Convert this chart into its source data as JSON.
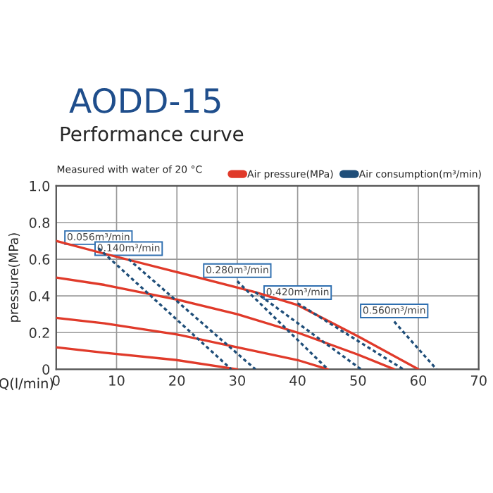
{
  "chart_data": {
    "type": "line",
    "title": "AODD-15",
    "subtitle": "Performance curve",
    "xlabel": "Q(l/min)",
    "ylabel": "pressure(MPa)",
    "xlim": [
      0,
      70
    ],
    "xticks": [
      0,
      10,
      20,
      30,
      40,
      50,
      60,
      70
    ],
    "ylim": [
      0,
      1.0
    ],
    "yticks": [
      0,
      0.2,
      0.4,
      0.6,
      0.8,
      {
        "value": 1.0,
        "label": "1.0"
      }
    ],
    "grid": true,
    "legend": "top right",
    "series": [
      {
        "name": "Air pressure(MPa)",
        "color": "#e03a2a",
        "line_style": "solid",
        "x": [
          0,
          8,
          20,
          33,
          40,
          50,
          60
        ],
        "values": [
          0.7,
          0.63,
          0.53,
          0.42,
          0.35,
          0.18,
          0
        ]
      },
      {
        "color": "#e03a2a",
        "line_style": "solid",
        "x": [
          0,
          8,
          20,
          30,
          40,
          50,
          56
        ],
        "values": [
          0.5,
          0.46,
          0.38,
          0.3,
          0.2,
          0.08,
          0
        ]
      },
      {
        "color": "#e03a2a",
        "line_style": "solid",
        "x": [
          0,
          8,
          20,
          30,
          40,
          45
        ],
        "values": [
          0.28,
          0.25,
          0.19,
          0.12,
          0.05,
          0
        ]
      },
      {
        "color": "#e03a2a",
        "line_style": "solid",
        "x": [
          0,
          8,
          20,
          30
        ],
        "values": [
          0.12,
          0.09,
          0.05,
          0
        ]
      },
      {
        "name": "Air consumption(m³/min)",
        "color": "#1f4e79",
        "line_style": "dotted",
        "x": [
          7,
          29
        ],
        "values": [
          0.66,
          0
        ]
      },
      {
        "color": "#1f4e79",
        "line_style": "dotted",
        "x": [
          12,
          33
        ],
        "values": [
          0.6,
          0
        ]
      },
      {
        "color": "#1f4e79",
        "line_style": "dotted",
        "x": [
          30,
          45
        ],
        "values": [
          0.48,
          0
        ]
      },
      {
        "color": "#1f4e79",
        "line_style": "dotted",
        "x": [
          33,
          50.5
        ],
        "values": [
          0.42,
          0
        ]
      },
      {
        "color": "#1f4e79",
        "line_style": "dotted",
        "x": [
          40,
          57.5
        ],
        "values": [
          0.36,
          0
        ]
      },
      {
        "color": "#1f4e79",
        "line_style": "dotted",
        "x": [
          56,
          63
        ],
        "values": [
          0.26,
          0
        ]
      }
    ],
    "annotations": [
      "Measured with water of 20 °C",
      "0.056m³/min",
      "0.140m³/min",
      "0.280m³/min",
      "0.420m³/min",
      "0.560m³/min"
    ]
  }
}
